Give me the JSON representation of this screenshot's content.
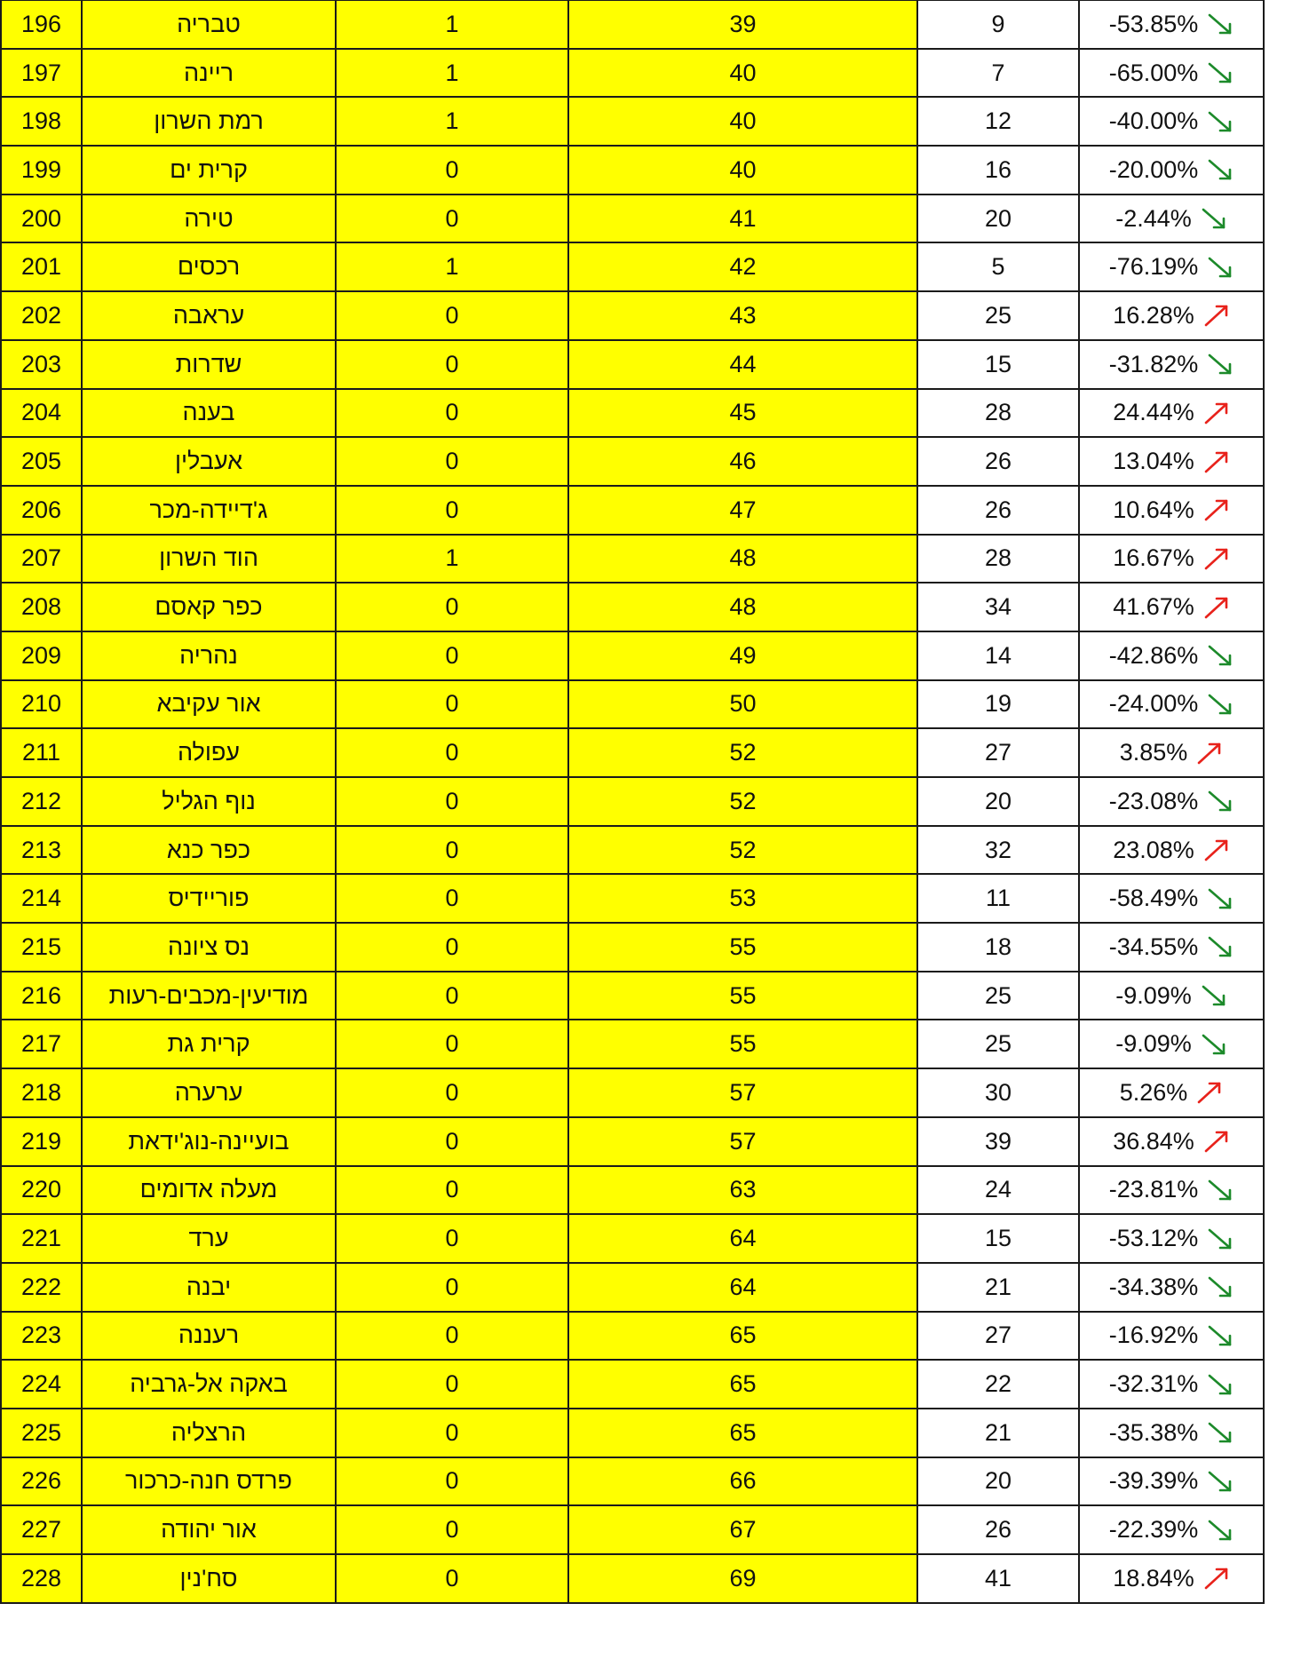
{
  "colors": {
    "highlight": "#ffff00",
    "up_arrow": "#e8221b",
    "down_arrow": "#1c8a2a"
  },
  "rows": [
    {
      "rank": "196",
      "city": "טבריה",
      "a": "1",
      "b": "39",
      "c": "9",
      "change": "-53.85%",
      "trend": "down"
    },
    {
      "rank": "197",
      "city": "ריינה",
      "a": "1",
      "b": "40",
      "c": "7",
      "change": "-65.00%",
      "trend": "down"
    },
    {
      "rank": "198",
      "city": "רמת השרון",
      "a": "1",
      "b": "40",
      "c": "12",
      "change": "-40.00%",
      "trend": "down"
    },
    {
      "rank": "199",
      "city": "קרית ים",
      "a": "0",
      "b": "40",
      "c": "16",
      "change": "-20.00%",
      "trend": "down"
    },
    {
      "rank": "200",
      "city": "טירה",
      "a": "0",
      "b": "41",
      "c": "20",
      "change": "-2.44%",
      "trend": "down"
    },
    {
      "rank": "201",
      "city": "רכסים",
      "a": "1",
      "b": "42",
      "c": "5",
      "change": "-76.19%",
      "trend": "down"
    },
    {
      "rank": "202",
      "city": "עראבה",
      "a": "0",
      "b": "43",
      "c": "25",
      "change": "16.28%",
      "trend": "up"
    },
    {
      "rank": "203",
      "city": "שדרות",
      "a": "0",
      "b": "44",
      "c": "15",
      "change": "-31.82%",
      "trend": "down"
    },
    {
      "rank": "204",
      "city": "בענה",
      "a": "0",
      "b": "45",
      "c": "28",
      "change": "24.44%",
      "trend": "up"
    },
    {
      "rank": "205",
      "city": "אעבלין",
      "a": "0",
      "b": "46",
      "c": "26",
      "change": "13.04%",
      "trend": "up"
    },
    {
      "rank": "206",
      "city": "ג'דיידה-מכר",
      "a": "0",
      "b": "47",
      "c": "26",
      "change": "10.64%",
      "trend": "up"
    },
    {
      "rank": "207",
      "city": "הוד השרון",
      "a": "1",
      "b": "48",
      "c": "28",
      "change": "16.67%",
      "trend": "up"
    },
    {
      "rank": "208",
      "city": "כפר קאסם",
      "a": "0",
      "b": "48",
      "c": "34",
      "change": "41.67%",
      "trend": "up"
    },
    {
      "rank": "209",
      "city": "נהריה",
      "a": "0",
      "b": "49",
      "c": "14",
      "change": "-42.86%",
      "trend": "down"
    },
    {
      "rank": "210",
      "city": "אור עקיבא",
      "a": "0",
      "b": "50",
      "c": "19",
      "change": "-24.00%",
      "trend": "down"
    },
    {
      "rank": "211",
      "city": "עפולה",
      "a": "0",
      "b": "52",
      "c": "27",
      "change": "3.85%",
      "trend": "up"
    },
    {
      "rank": "212",
      "city": "נוף הגליל",
      "a": "0",
      "b": "52",
      "c": "20",
      "change": "-23.08%",
      "trend": "down"
    },
    {
      "rank": "213",
      "city": "כפר כנא",
      "a": "0",
      "b": "52",
      "c": "32",
      "change": "23.08%",
      "trend": "up"
    },
    {
      "rank": "214",
      "city": "פוריידיס",
      "a": "0",
      "b": "53",
      "c": "11",
      "change": "-58.49%",
      "trend": "down"
    },
    {
      "rank": "215",
      "city": "נס ציונה",
      "a": "0",
      "b": "55",
      "c": "18",
      "change": "-34.55%",
      "trend": "down"
    },
    {
      "rank": "216",
      "city": "מודיעין-מכבים-רעות",
      "a": "0",
      "b": "55",
      "c": "25",
      "change": "-9.09%",
      "trend": "down"
    },
    {
      "rank": "217",
      "city": "קרית גת",
      "a": "0",
      "b": "55",
      "c": "25",
      "change": "-9.09%",
      "trend": "down"
    },
    {
      "rank": "218",
      "city": "ערערה",
      "a": "0",
      "b": "57",
      "c": "30",
      "change": "5.26%",
      "trend": "up"
    },
    {
      "rank": "219",
      "city": "בועיינה-נוג'ידאת",
      "a": "0",
      "b": "57",
      "c": "39",
      "change": "36.84%",
      "trend": "up"
    },
    {
      "rank": "220",
      "city": "מעלה אדומים",
      "a": "0",
      "b": "63",
      "c": "24",
      "change": "-23.81%",
      "trend": "down"
    },
    {
      "rank": "221",
      "city": "ערד",
      "a": "0",
      "b": "64",
      "c": "15",
      "change": "-53.12%",
      "trend": "down"
    },
    {
      "rank": "222",
      "city": "יבנה",
      "a": "0",
      "b": "64",
      "c": "21",
      "change": "-34.38%",
      "trend": "down"
    },
    {
      "rank": "223",
      "city": "רעננה",
      "a": "0",
      "b": "65",
      "c": "27",
      "change": "-16.92%",
      "trend": "down"
    },
    {
      "rank": "224",
      "city": "באקה אל-גרביה",
      "a": "0",
      "b": "65",
      "c": "22",
      "change": "-32.31%",
      "trend": "down"
    },
    {
      "rank": "225",
      "city": "הרצליה",
      "a": "0",
      "b": "65",
      "c": "21",
      "change": "-35.38%",
      "trend": "down"
    },
    {
      "rank": "226",
      "city": "פרדס חנה-כרכור",
      "a": "0",
      "b": "66",
      "c": "20",
      "change": "-39.39%",
      "trend": "down"
    },
    {
      "rank": "227",
      "city": "אור יהודה",
      "a": "0",
      "b": "67",
      "c": "26",
      "change": "-22.39%",
      "trend": "down"
    },
    {
      "rank": "228",
      "city": "סח'נין",
      "a": "0",
      "b": "69",
      "c": "41",
      "change": "18.84%",
      "trend": "up"
    }
  ]
}
